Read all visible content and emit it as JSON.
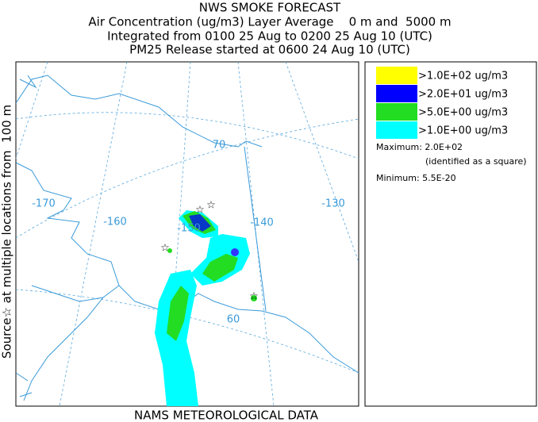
{
  "header": {
    "lines": [
      "NWS SMOKE FORECAST",
      "Air Concentration (ug/m3) Layer Average    0 m and  5000 m",
      "Integrated from 0100 25 Aug to 0200 25 Aug 10 (UTC)",
      "PM25 Release started at 0600 24 Aug 10 (UTC)"
    ]
  },
  "side_label": "Source☆ at multiple locations from  100 m",
  "footer": "NAMS METEOROLOGICAL DATA",
  "map": {
    "longitude_labels": [
      "-170",
      "-160",
      "-150",
      "-140",
      "-130"
    ],
    "latitude_labels": [
      "70",
      "60"
    ]
  },
  "legend": {
    "items": [
      {
        "label": ">1.0E+02 ug/m3",
        "color": "#ffff00"
      },
      {
        "label": ">2.0E+01 ug/m3",
        "color": "#0000ff"
      },
      {
        "label": ">5.0E+00 ug/m3",
        "color": "#22dd22"
      },
      {
        "label": ">1.0E+00 ug/m3",
        "color": "#00ffff"
      }
    ],
    "maximum": "Maximum: 2.0E+02",
    "maximum_note": "(identified as a square)",
    "minimum": "Minimum: 5.5E-20"
  }
}
